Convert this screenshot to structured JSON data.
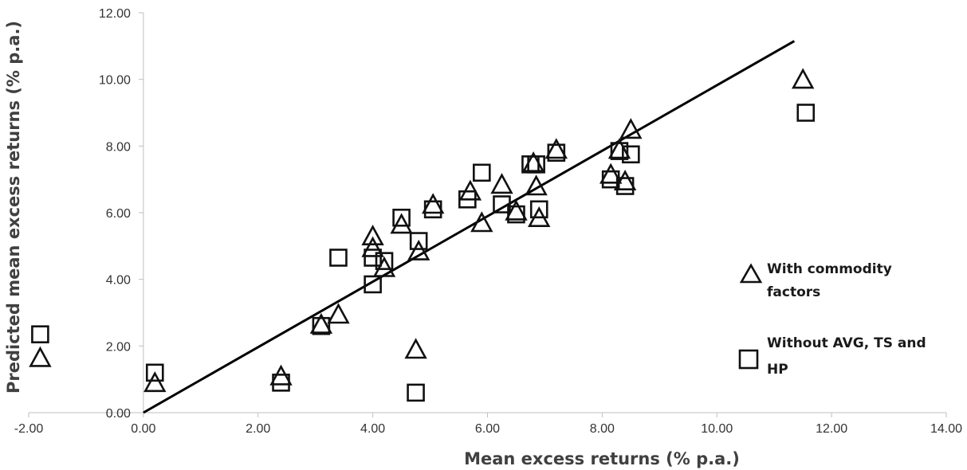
{
  "chart_data": {
    "type": "scatter",
    "title": "",
    "xlabel": "Mean excess returns (% p.a.)",
    "ylabel": "Predicted mean excess returns (% p.a.)",
    "xlim": [
      -2,
      14
    ],
    "ylim": [
      0,
      12
    ],
    "x_ticks": [
      "-2.00",
      "0.00",
      "2.00",
      "4.00",
      "6.00",
      "8.00",
      "10.00",
      "12.00",
      "14.00"
    ],
    "y_ticks": [
      "0.00",
      "2.00",
      "4.00",
      "6.00",
      "8.00",
      "10.00",
      "12.00"
    ],
    "grid": false,
    "legend_position": "right",
    "fit_line": {
      "x": [
        0,
        11.35
      ],
      "y": [
        0,
        11.15
      ]
    },
    "series": [
      {
        "name": "With commodity factors",
        "marker": "triangle",
        "points": [
          [
            -1.8,
            1.6
          ],
          [
            0.2,
            0.85
          ],
          [
            2.4,
            1.05
          ],
          [
            3.1,
            2.6
          ],
          [
            3.4,
            2.9
          ],
          [
            4.0,
            5.25
          ],
          [
            4.0,
            4.9
          ],
          [
            4.2,
            4.3
          ],
          [
            4.5,
            5.6
          ],
          [
            4.8,
            4.8
          ],
          [
            4.75,
            1.85
          ],
          [
            5.05,
            6.2
          ],
          [
            5.7,
            6.6
          ],
          [
            5.9,
            5.65
          ],
          [
            6.25,
            6.8
          ],
          [
            6.5,
            6.0
          ],
          [
            6.85,
            6.75
          ],
          [
            6.9,
            5.8
          ],
          [
            6.8,
            7.45
          ],
          [
            7.2,
            7.85
          ],
          [
            8.15,
            7.1
          ],
          [
            8.3,
            7.85
          ],
          [
            8.4,
            6.9
          ],
          [
            8.5,
            8.45
          ],
          [
            11.5,
            9.95
          ]
        ]
      },
      {
        "name": "Without AVG, TS and HP",
        "marker": "square",
        "points": [
          [
            -1.8,
            2.35
          ],
          [
            0.2,
            1.2
          ],
          [
            2.4,
            0.9
          ],
          [
            3.1,
            2.6
          ],
          [
            3.4,
            4.65
          ],
          [
            4.0,
            4.65
          ],
          [
            4.0,
            3.85
          ],
          [
            4.2,
            4.55
          ],
          [
            4.5,
            5.85
          ],
          [
            4.8,
            5.15
          ],
          [
            4.75,
            0.6
          ],
          [
            5.05,
            6.1
          ],
          [
            5.65,
            6.4
          ],
          [
            5.9,
            7.2
          ],
          [
            6.25,
            6.25
          ],
          [
            6.5,
            5.95
          ],
          [
            6.9,
            6.1
          ],
          [
            6.75,
            7.45
          ],
          [
            6.85,
            7.45
          ],
          [
            7.2,
            7.8
          ],
          [
            8.15,
            7.0
          ],
          [
            8.3,
            7.85
          ],
          [
            8.4,
            6.8
          ],
          [
            8.5,
            7.75
          ],
          [
            11.55,
            9.0
          ]
        ]
      }
    ]
  },
  "legend": {
    "entry1_line1": "With commodity",
    "entry1_line2": "factors",
    "entry2_line1": "Without AVG, TS and",
    "entry2_line2": "HP"
  }
}
